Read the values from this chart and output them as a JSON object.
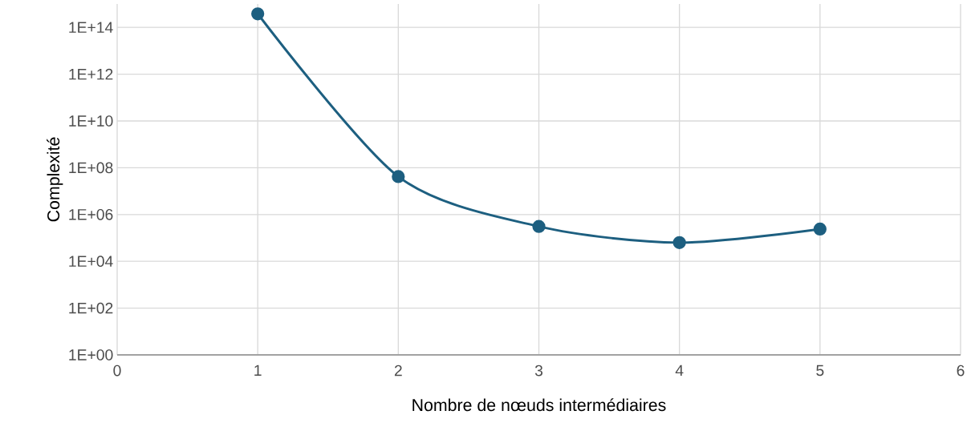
{
  "chart_data": {
    "type": "line",
    "xlabel": "Nombre de nœuds intermédiaires",
    "ylabel": "Complexité",
    "x": [
      1,
      2,
      3,
      4,
      5
    ],
    "series": [
      {
        "color": "#1d5f80",
        "values": [
          380000000000000,
          42000000,
          310000,
          63000,
          240000
        ]
      }
    ],
    "log": "y",
    "xlim": [
      0,
      6
    ],
    "xticks": [
      0,
      1,
      2,
      3,
      4,
      5,
      6
    ],
    "ylim": [
      1,
      1000000000000000
    ],
    "yticks": [
      {
        "value": 1,
        "label": "1E+00"
      },
      {
        "value": 100,
        "label": "1E+02"
      },
      {
        "value": 10000,
        "label": "1E+04"
      },
      {
        "value": 1000000,
        "label": "1E+06"
      },
      {
        "value": 100000000,
        "label": "1E+08"
      },
      {
        "value": 10000000000,
        "label": "1E+10"
      },
      {
        "value": 1000000000000,
        "label": "1E+12"
      },
      {
        "value": 100000000000000,
        "label": "1E+14"
      }
    ],
    "grid": true,
    "marker": "circle",
    "line_style": "solid"
  }
}
